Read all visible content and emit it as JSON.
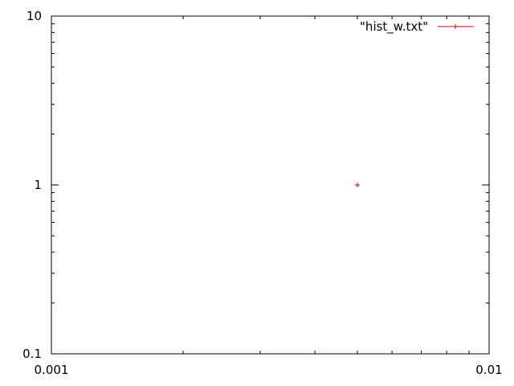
{
  "chart_data": {
    "type": "scatter",
    "title": "",
    "xlabel": "",
    "ylabel": "",
    "x_scale": "log",
    "y_scale": "log",
    "xlim": [
      0.001,
      0.01
    ],
    "ylim": [
      0.1,
      10
    ],
    "x_ticks": [
      "0.001",
      "0.01"
    ],
    "y_ticks": [
      "0.1",
      "1",
      "10"
    ],
    "grid": false,
    "legend_position": "top-right",
    "series": [
      {
        "name": "\"hist_w.txt\"",
        "color": "#cc0000",
        "marker": "plus",
        "points": [
          {
            "x": 0.005,
            "y": 1
          }
        ]
      }
    ]
  }
}
